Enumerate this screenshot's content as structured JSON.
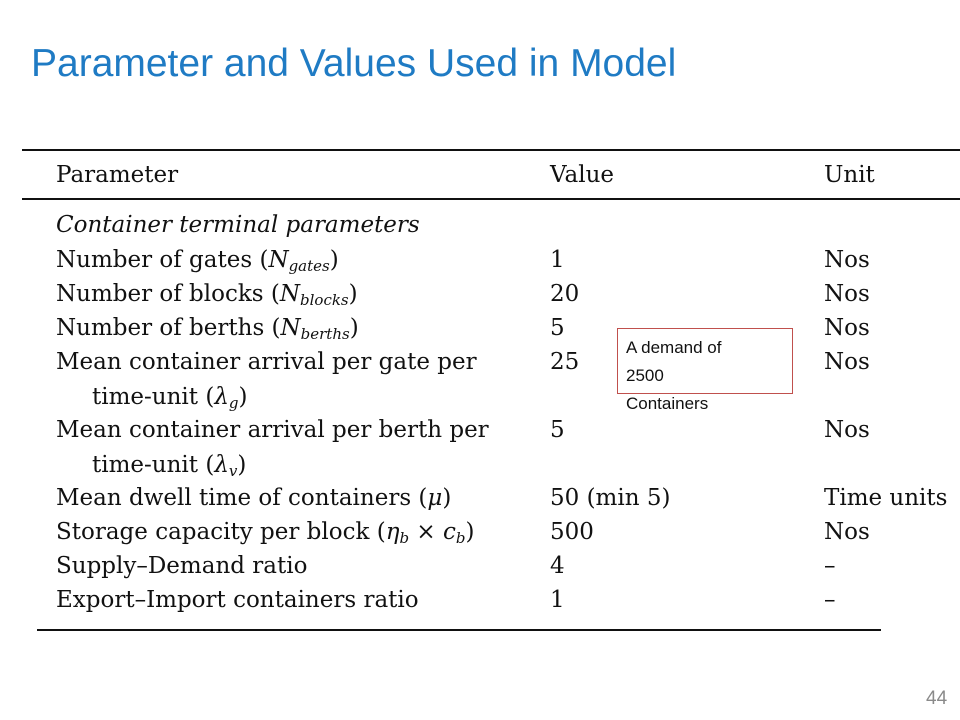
{
  "slide": {
    "title": "Parameter and Values Used in Model",
    "page_number": "44"
  },
  "table": {
    "headers": {
      "parameter": "Parameter",
      "value": "Value",
      "unit": "Unit"
    },
    "section_label": "Container terminal parameters",
    "rows": [
      {
        "label": "Number of gates (",
        "symbol": "N",
        "sub": "gates",
        "close": ")",
        "value": "1",
        "unit": "Nos"
      },
      {
        "label": "Number of blocks (",
        "symbol": "N",
        "sub": "blocks",
        "close": ")",
        "value": "20",
        "unit": "Nos"
      },
      {
        "label": "Number of berths (",
        "symbol": "N",
        "sub": "berths",
        "close": ")",
        "value": "5",
        "unit": "Nos"
      },
      {
        "label": "Mean container arrival per gate per",
        "cont": "time-unit (",
        "symbol": "λ",
        "sub": "g",
        "close": ")",
        "value": "25",
        "unit": "Nos"
      },
      {
        "label": "Mean container arrival per berth per",
        "cont": "time-unit (",
        "symbol": "λ",
        "sub": "v",
        "close": ")",
        "value": "5",
        "unit": "Nos"
      },
      {
        "label": "Mean dwell time of containers (",
        "symbol": "μ",
        "close": ")",
        "value": "50 (min 5)",
        "unit": "Time units"
      },
      {
        "label": "Storage capacity per block (",
        "symbol": "η",
        "sub": "b",
        "mid": " × ",
        "symbol2": "c",
        "sub2": "b",
        "close": ")",
        "value": "500",
        "unit": "Nos"
      },
      {
        "label": "Supply–Demand ratio",
        "value": "4",
        "unit": "–"
      },
      {
        "label": "Export–Import containers ratio",
        "value": "1",
        "unit": "–"
      }
    ]
  },
  "callout": {
    "lines": [
      "A demand of",
      "2500",
      "Containers"
    ]
  }
}
